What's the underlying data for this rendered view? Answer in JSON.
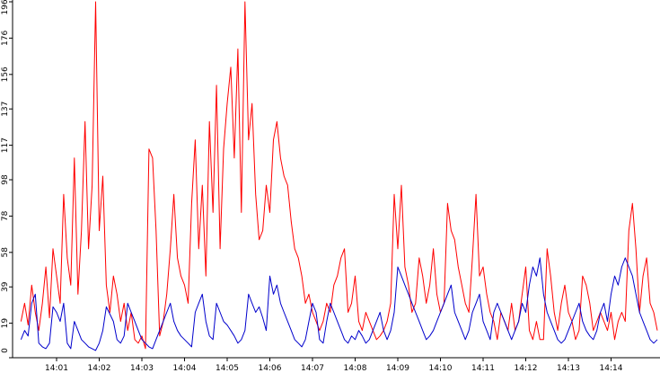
{
  "chart_data": {
    "type": "line",
    "title": "",
    "xlabel": "",
    "ylabel": "",
    "x_start": "14:00:10",
    "x_step_seconds": 5,
    "x_ticks": [
      "14:01",
      "14:02",
      "14:03",
      "14:04",
      "14:05",
      "14:06",
      "14:07",
      "14:08",
      "14:09",
      "14:10",
      "14:11",
      "14:12",
      "14:13",
      "14:14"
    ],
    "y_ticks": [
      "0",
      "19",
      "39",
      "58",
      "78",
      "98",
      "117",
      "137",
      "156",
      "176",
      "196"
    ],
    "ylim": [
      0,
      196
    ],
    "grid": false,
    "legend": "none",
    "series": [
      {
        "color": "#ff0000",
        "values": [
          20,
          30,
          18,
          40,
          25,
          15,
          30,
          50,
          22,
          60,
          45,
          30,
          90,
          55,
          40,
          110,
          35,
          70,
          130,
          60,
          95,
          196,
          70,
          100,
          40,
          25,
          45,
          35,
          20,
          30,
          15,
          25,
          10,
          8,
          12,
          5,
          115,
          110,
          70,
          12,
          20,
          35,
          60,
          90,
          55,
          45,
          40,
          30,
          85,
          120,
          60,
          95,
          45,
          130,
          80,
          150,
          60,
          115,
          140,
          160,
          110,
          170,
          80,
          196,
          120,
          140,
          90,
          65,
          70,
          95,
          80,
          120,
          130,
          110,
          100,
          95,
          75,
          60,
          55,
          45,
          30,
          35,
          25,
          20,
          15,
          20,
          30,
          25,
          40,
          45,
          55,
          60,
          25,
          30,
          45,
          20,
          15,
          25,
          20,
          15,
          10,
          12,
          15,
          20,
          30,
          90,
          60,
          95,
          50,
          40,
          25,
          30,
          55,
          45,
          30,
          40,
          60,
          35,
          25,
          30,
          85,
          70,
          65,
          50,
          40,
          30,
          25,
          55,
          90,
          45,
          50,
          35,
          25,
          20,
          10,
          25,
          20,
          15,
          30,
          15,
          20,
          35,
          50,
          15,
          10,
          20,
          10,
          10,
          60,
          45,
          25,
          15,
          30,
          40,
          25,
          20,
          10,
          15,
          45,
          40,
          30,
          15,
          20,
          25,
          20,
          15,
          25,
          10,
          20,
          25,
          20,
          70,
          85,
          60,
          25,
          45,
          55,
          30,
          25,
          15
        ]
      },
      {
        "color": "#0000cc",
        "values": [
          10,
          15,
          12,
          30,
          35,
          8,
          6,
          5,
          8,
          28,
          25,
          20,
          30,
          8,
          5,
          20,
          15,
          10,
          8,
          6,
          5,
          4,
          8,
          15,
          28,
          24,
          20,
          10,
          8,
          12,
          30,
          25,
          20,
          15,
          10,
          8,
          6,
          5,
          10,
          15,
          20,
          25,
          30,
          20,
          15,
          12,
          10,
          8,
          6,
          25,
          30,
          35,
          20,
          12,
          10,
          30,
          25,
          20,
          18,
          15,
          12,
          8,
          10,
          15,
          35,
          30,
          25,
          28,
          22,
          15,
          45,
          35,
          40,
          30,
          25,
          20,
          15,
          10,
          8,
          6,
          10,
          20,
          30,
          25,
          10,
          8,
          20,
          30,
          25,
          20,
          15,
          10,
          8,
          12,
          10,
          15,
          12,
          8,
          10,
          15,
          20,
          25,
          15,
          10,
          15,
          25,
          50,
          45,
          40,
          35,
          30,
          25,
          20,
          15,
          10,
          12,
          15,
          20,
          25,
          30,
          35,
          40,
          25,
          20,
          15,
          10,
          15,
          25,
          30,
          35,
          20,
          15,
          10,
          25,
          30,
          25,
          20,
          15,
          10,
          15,
          20,
          30,
          25,
          40,
          50,
          45,
          55,
          35,
          25,
          20,
          15,
          10,
          8,
          10,
          15,
          20,
          25,
          30,
          20,
          15,
          12,
          10,
          15,
          25,
          30,
          20,
          35,
          45,
          40,
          50,
          55,
          50,
          45,
          35,
          25,
          20,
          15,
          10,
          8,
          10
        ]
      }
    ]
  }
}
